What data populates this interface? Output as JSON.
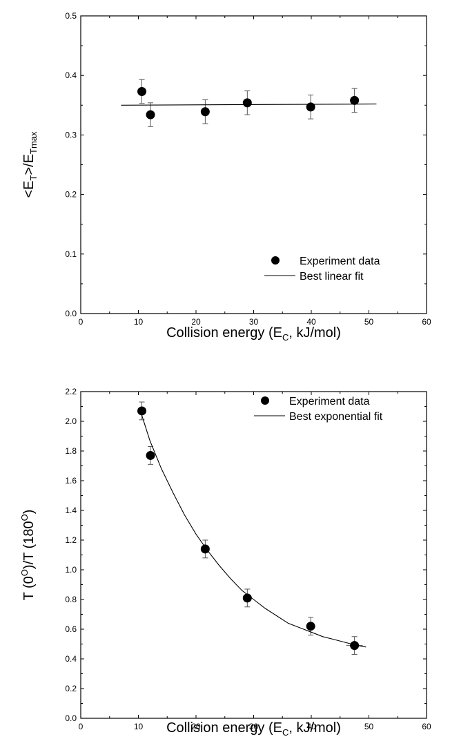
{
  "chart_data": [
    {
      "type": "scatter",
      "xlabel": "Collision energy (E<sub>C</sub>, kJ/mol)",
      "xlabel_parts": [
        "Collision energy (E",
        "C",
        ", kJ/mol)"
      ],
      "ylabel_parts": [
        "<E",
        "T",
        ">/E",
        "Tmax"
      ],
      "xlim": [
        0,
        60
      ],
      "ylim": [
        0.0,
        0.5
      ],
      "x_ticks": [
        "0",
        "10",
        "20",
        "30",
        "40",
        "50",
        "60"
      ],
      "y_ticks": [
        "0.0",
        "0.1",
        "0.2",
        "0.3",
        "0.4",
        "0.5"
      ],
      "legend_placement": "bottom-right",
      "grid": false,
      "series": [
        {
          "name": "Experiment data",
          "marker": "filled-circle",
          "x": [
            10.6,
            12.1,
            21.6,
            28.9,
            39.9,
            47.5
          ],
          "y": [
            0.373,
            0.334,
            0.339,
            0.354,
            0.347,
            0.358
          ],
          "y_err": [
            0.02,
            0.02,
            0.02,
            0.02,
            0.02,
            0.02
          ]
        },
        {
          "name": "Best linear fit",
          "line": "solid",
          "x": [
            7.0,
            51.3
          ],
          "y": [
            0.35,
            0.352
          ]
        }
      ]
    },
    {
      "type": "scatter",
      "xlabel_parts": [
        "Collision energy (E",
        "C",
        ", kJ/mol)"
      ],
      "ylabel_parts": [
        "T (0",
        "O",
        ")/T (180",
        "O",
        ")"
      ],
      "xlim": [
        0,
        60
      ],
      "ylim": [
        0.0,
        2.2
      ],
      "x_ticks": [
        "0",
        "10",
        "20",
        "30",
        "40",
        "50",
        "60"
      ],
      "y_ticks": [
        "0.0",
        "0.2",
        "0.4",
        "0.6",
        "0.8",
        "1.0",
        "1.2",
        "1.4",
        "1.6",
        "1.8",
        "2.0",
        "2.2"
      ],
      "legend_placement": "top-right",
      "grid": false,
      "series": [
        {
          "name": "Experiment data",
          "marker": "filled-circle",
          "x": [
            10.6,
            12.1,
            21.6,
            28.9,
            39.9,
            47.5
          ],
          "y": [
            2.07,
            1.77,
            1.14,
            0.81,
            0.62,
            0.49
          ],
          "y_err": [
            0.06,
            0.06,
            0.06,
            0.06,
            0.06,
            0.06
          ]
        },
        {
          "name": "Best exponential fit",
          "line": "solid",
          "x": [
            10.6,
            12.0,
            14.0,
            16.0,
            18.0,
            20.0,
            22.0,
            24.0,
            26.0,
            28.0,
            30.0,
            32.0,
            34.0,
            36.0,
            38.0,
            40.0,
            42.0,
            44.0,
            46.0,
            48.0,
            49.5
          ],
          "y": [
            2.04,
            1.87,
            1.68,
            1.52,
            1.37,
            1.24,
            1.13,
            1.03,
            0.94,
            0.86,
            0.8,
            0.74,
            0.69,
            0.64,
            0.61,
            0.58,
            0.55,
            0.53,
            0.51,
            0.49,
            0.48
          ]
        }
      ]
    }
  ]
}
